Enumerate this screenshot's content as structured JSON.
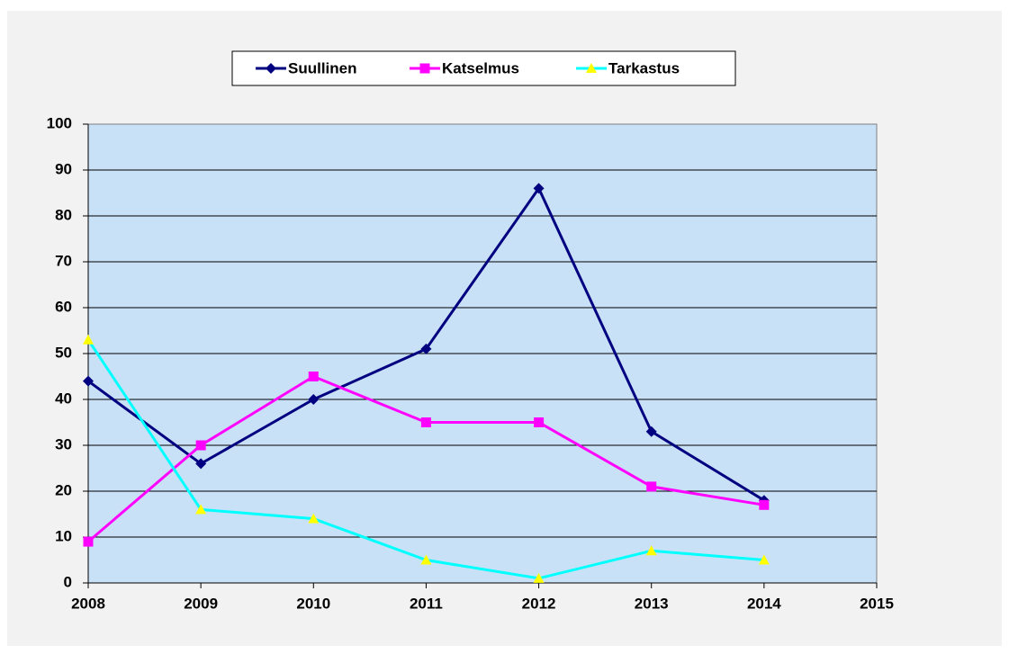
{
  "chart_data": {
    "type": "line",
    "x": [
      2008,
      2009,
      2010,
      2011,
      2012,
      2013,
      2014
    ],
    "series": [
      {
        "name": "Suullinen",
        "color": "#000080",
        "marker": "diamond",
        "marker_color": "#000080",
        "values": [
          44,
          26,
          40,
          51,
          86,
          33,
          18
        ]
      },
      {
        "name": "Katselmus",
        "color": "#ff00ff",
        "marker": "square",
        "marker_color": "#ff00ff",
        "values": [
          9,
          30,
          45,
          35,
          35,
          21,
          17
        ]
      },
      {
        "name": "Tarkastus",
        "color": "#00ffff",
        "marker": "triangle",
        "marker_color": "#ffff00",
        "values": [
          53,
          16,
          14,
          5,
          1,
          7,
          5
        ]
      }
    ],
    "xlim": [
      2008,
      2015
    ],
    "xticks": [
      2008,
      2009,
      2010,
      2011,
      2012,
      2013,
      2014,
      2015
    ],
    "ylim": [
      0,
      100
    ],
    "yticks": [
      0,
      10,
      20,
      30,
      40,
      50,
      60,
      70,
      80,
      90,
      100
    ],
    "grid": true,
    "legend": "top"
  }
}
